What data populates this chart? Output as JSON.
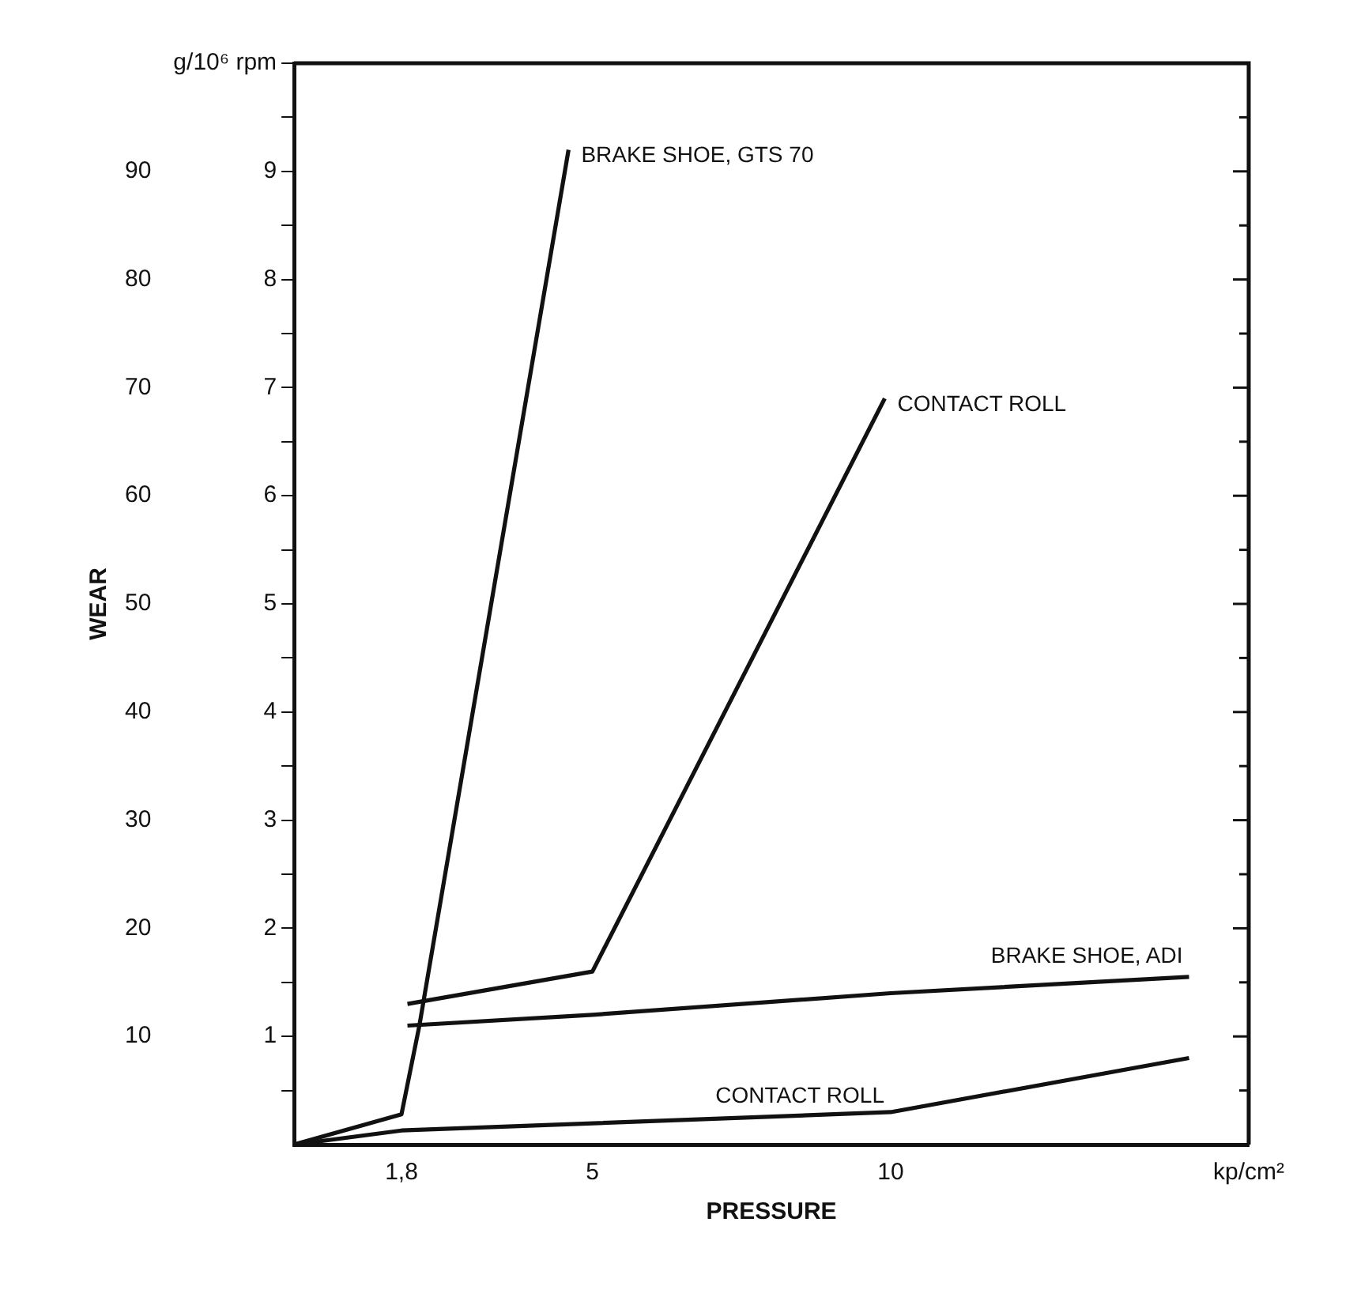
{
  "chart_data": {
    "type": "line",
    "xlabel": "PRESSURE",
    "y2label": "WEAR",
    "xlim": [
      0,
      16
    ],
    "xticks": [
      {
        "value": 1.8,
        "label": "1,8"
      },
      5,
      10,
      {
        "value": 16,
        "label": "kp/cm²"
      }
    ],
    "ylim": [
      0,
      10
    ],
    "yticks": [
      {
        "value": 0.5,
        "label": null
      },
      1,
      {
        "value": 1.5,
        "label": null
      },
      2,
      {
        "value": 2.5,
        "label": null
      },
      3,
      {
        "value": 3.5,
        "label": null
      },
      4,
      {
        "value": 4.5,
        "label": null
      },
      5,
      {
        "value": 5.5,
        "label": null
      },
      6,
      {
        "value": 6.5,
        "label": null
      },
      7,
      {
        "value": 7.5,
        "label": null
      },
      8,
      {
        "value": 8.5,
        "label": null
      },
      9,
      {
        "value": 9.5,
        "label": null
      },
      {
        "value": 10,
        "label": "g/10⁶ rpm"
      }
    ],
    "y2lim": [
      0,
      100
    ],
    "y2ticks": [
      10,
      20,
      30,
      40,
      50,
      60,
      70,
      80,
      90
    ],
    "series": [
      {
        "name": "BRAKE SHOE, GTS 70",
        "color": "#111111",
        "x": [
          0,
          1.8,
          2.1,
          4.6
        ],
        "values": [
          0,
          0.28,
          1.1,
          9.2
        ]
      },
      {
        "name": "CONTACT ROLL",
        "color": "#111111",
        "x": [
          1.9,
          5,
          9.9
        ],
        "values": [
          1.3,
          1.6,
          6.9
        ]
      },
      {
        "name": "BRAKE SHOE, ADI",
        "color": "#111111",
        "x": [
          1.9,
          5,
          10,
          15
        ],
        "values": [
          1.1,
          1.2,
          1.4,
          1.55
        ]
      },
      {
        "name": "CONTACT ROLL",
        "color": "#111111",
        "x": [
          0,
          1.8,
          10,
          15
        ],
        "values": [
          0,
          0.13,
          0.3,
          0.8
        ]
      }
    ],
    "grid": false,
    "legend": false,
    "marker": "none",
    "line_style": "solid"
  }
}
